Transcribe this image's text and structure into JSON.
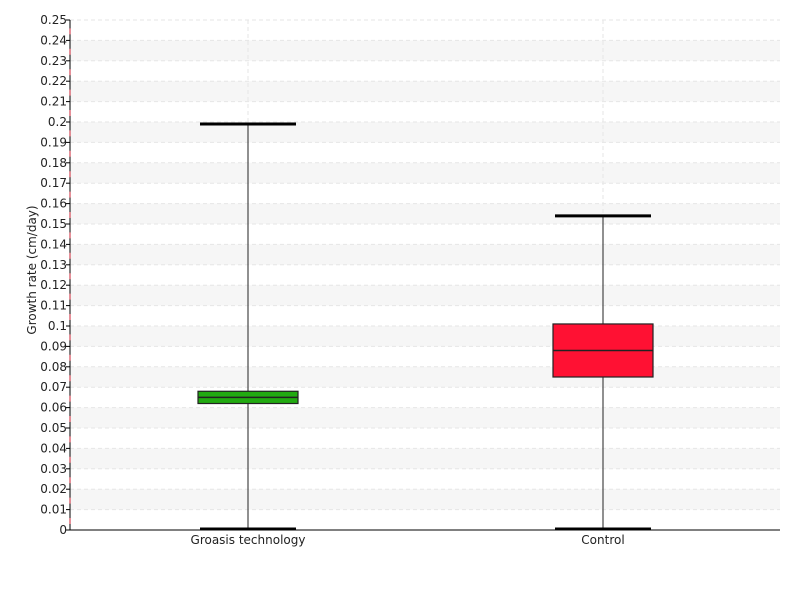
{
  "chart_data": {
    "type": "boxplot",
    "title": "",
    "xlabel": "",
    "ylabel": "Growth rate (cm/day)",
    "ylim": [
      0,
      0.25
    ],
    "ytick_step": 0.01,
    "grid": true,
    "legend": "none",
    "categories": [
      "Groasis technology",
      "Control"
    ],
    "boxes": [
      {
        "category": "Groasis technology",
        "min": 0.0,
        "q1": 0.062,
        "median": 0.065,
        "q3": 0.068,
        "max": 0.199,
        "color": "#22aa11"
      },
      {
        "category": "Control",
        "min": 0.0,
        "q1": 0.075,
        "median": 0.088,
        "q3": 0.101,
        "max": 0.154,
        "color": "#ff1133"
      }
    ],
    "colors": {
      "grid_line": "#e6e6e6",
      "band": "#f6f6f6",
      "axis": "#000000",
      "whisker": "#555555",
      "tick_mark": "#cc2233"
    }
  }
}
